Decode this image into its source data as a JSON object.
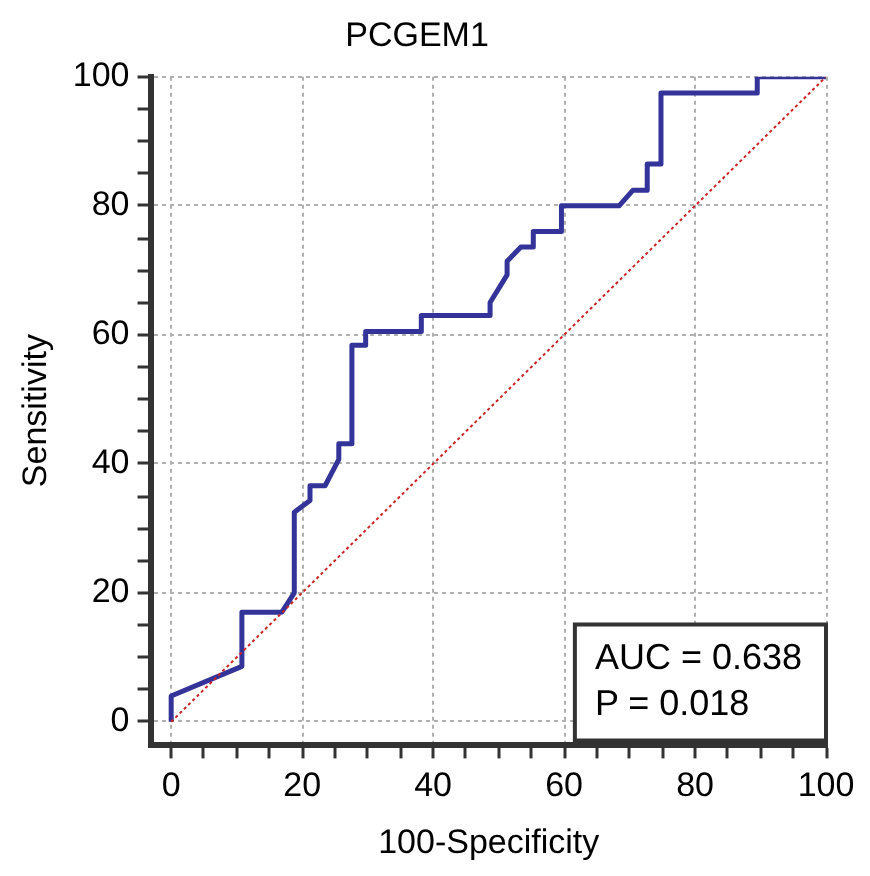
{
  "chart_data": {
    "type": "line",
    "title": "PCGEM1",
    "xlabel": "100-Specificity",
    "ylabel": "Sensitivity",
    "series": [
      {
        "type": "line",
        "color": "#333399",
        "line_style": "solid",
        "x": [
          0,
          0,
          10.8,
          10.8,
          16.9,
          18.8,
          18.8,
          21.2,
          21.2,
          23.5,
          25.6,
          25.6,
          27.6,
          27.6,
          29.7,
          29.7,
          38.2,
          38.2,
          48.7,
          48.7,
          51.3,
          51.3,
          53.4,
          55.3,
          55.3,
          59.6,
          59.6,
          68.4,
          70.5,
          72.7,
          72.7,
          74.8,
          74.8,
          89.5,
          89.5,
          100
        ],
        "values": [
          0,
          4,
          8.6,
          17,
          17,
          20,
          32.5,
          34.3,
          36.6,
          36.6,
          40.7,
          43.1,
          43.1,
          58.4,
          58.4,
          60.5,
          60.5,
          63,
          63,
          65,
          69.3,
          71.4,
          73.6,
          73.6,
          76,
          76,
          80,
          80,
          82.4,
          82.4,
          86.5,
          86.5,
          97.5,
          97.5,
          100,
          100
        ]
      },
      {
        "type": "line",
        "color": "#cc2222",
        "line_style": "dotted",
        "x": [
          0,
          100
        ],
        "values": [
          0,
          100
        ]
      }
    ],
    "xlim": [
      -3,
      100
    ],
    "ylim": [
      -3.5,
      100
    ],
    "xticks": [
      0,
      {
        "value": 5,
        "label": null
      },
      {
        "value": 10,
        "label": null
      },
      {
        "value": 15,
        "label": null
      },
      20,
      {
        "value": 25,
        "label": null
      },
      {
        "value": 30,
        "label": null
      },
      {
        "value": 35,
        "label": null
      },
      40,
      {
        "value": 45,
        "label": null
      },
      {
        "value": 50,
        "label": null
      },
      {
        "value": 55,
        "label": null
      },
      60,
      {
        "value": 65,
        "label": null
      },
      {
        "value": 70,
        "label": null
      },
      {
        "value": 75,
        "label": null
      },
      80,
      {
        "value": 85,
        "label": null
      },
      {
        "value": 90,
        "label": null
      },
      {
        "value": 95,
        "label": null
      },
      100
    ],
    "yticks": [
      0,
      {
        "value": 5,
        "label": null
      },
      {
        "value": 10,
        "label": null
      },
      {
        "value": 15,
        "label": null
      },
      20,
      {
        "value": 25,
        "label": null
      },
      {
        "value": 30,
        "label": null
      },
      {
        "value": 35,
        "label": null
      },
      40,
      {
        "value": 45,
        "label": null
      },
      {
        "value": 50,
        "label": null
      },
      {
        "value": 55,
        "label": null
      },
      60,
      {
        "value": 65,
        "label": null
      },
      {
        "value": 70,
        "label": null
      },
      {
        "value": 75,
        "label": null
      },
      80,
      {
        "value": 85,
        "label": null
      },
      {
        "value": 90,
        "label": null
      },
      {
        "value": 95,
        "label": null
      },
      100
    ],
    "grid": true,
    "legend": false,
    "marker": "none",
    "annotations": [
      "AUC = 0.638",
      "P = 0.018"
    ]
  }
}
